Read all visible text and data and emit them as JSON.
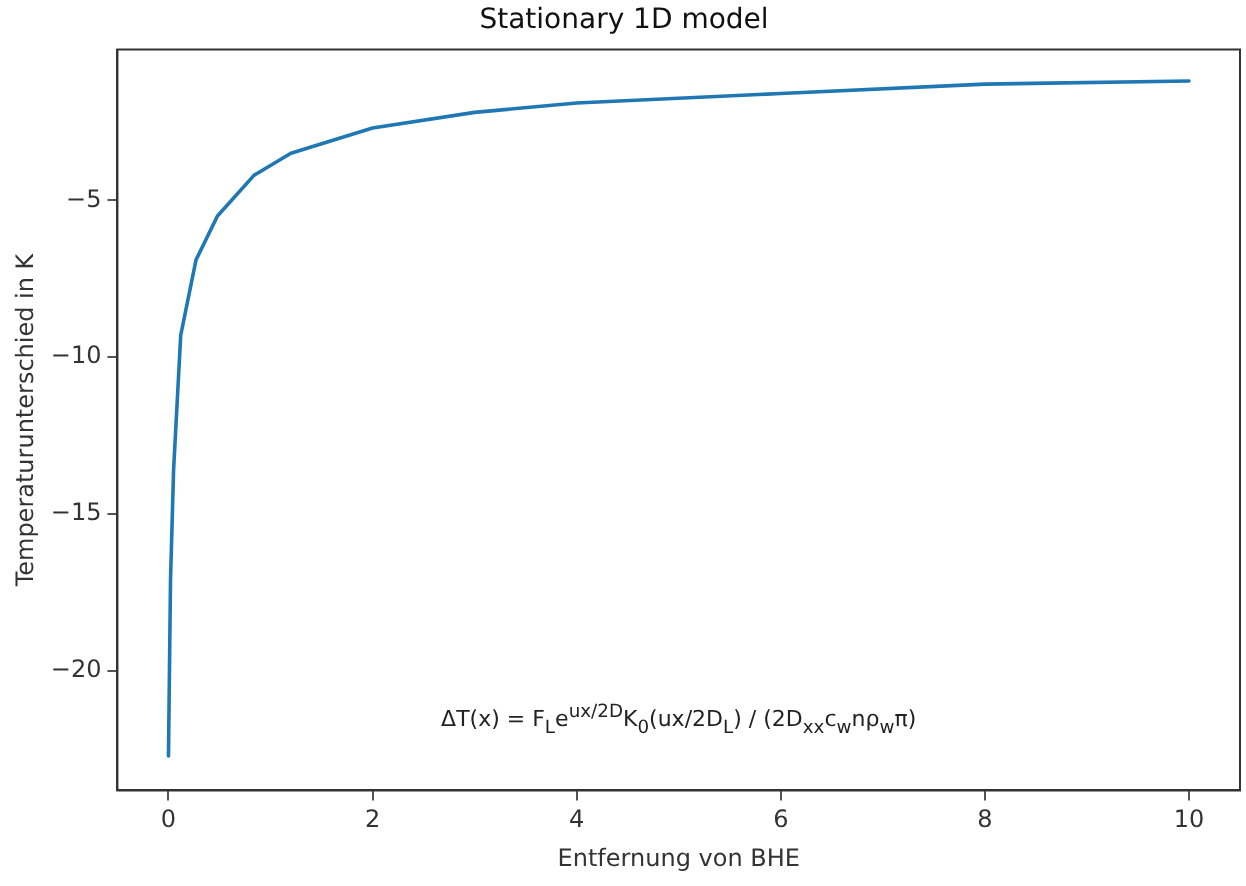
{
  "chart_data": {
    "type": "line",
    "title": "Stationary 1D model",
    "xlabel": "Entfernung von BHE",
    "ylabel": "Temperaturunterschied in K",
    "x": [
      0,
      0.02,
      0.05,
      0.12,
      0.27,
      0.48,
      0.84,
      1.2,
      2.0,
      3.0,
      4.0,
      6.0,
      8.0,
      10.0
    ],
    "series": [
      {
        "color": "#1f77b4",
        "values": [
          -22.7,
          -17.1,
          -13.6,
          -9.3,
          -6.9,
          -5.5,
          -4.2,
          -3.5,
          -2.7,
          -2.2,
          -1.9,
          -1.6,
          -1.3,
          -1.2
        ]
      }
    ],
    "xlim": [
      -0.5,
      10.5
    ],
    "ylim": [
      -23.8,
      -0.2
    ],
    "xticks": [
      0,
      2,
      4,
      6,
      8,
      10
    ],
    "yticks": [
      -20,
      -15,
      -10,
      -5
    ],
    "grid": false,
    "legend": false,
    "marker": "none",
    "line_style": "solid",
    "annotations": [
      "ΔT(x) = F$_{L}$e$^{ux/2D}$K$_{0}$(ux/2D$_{L}$) / (2D$_{xx}$c$_{w}$nρ$_{w}$π)"
    ]
  }
}
